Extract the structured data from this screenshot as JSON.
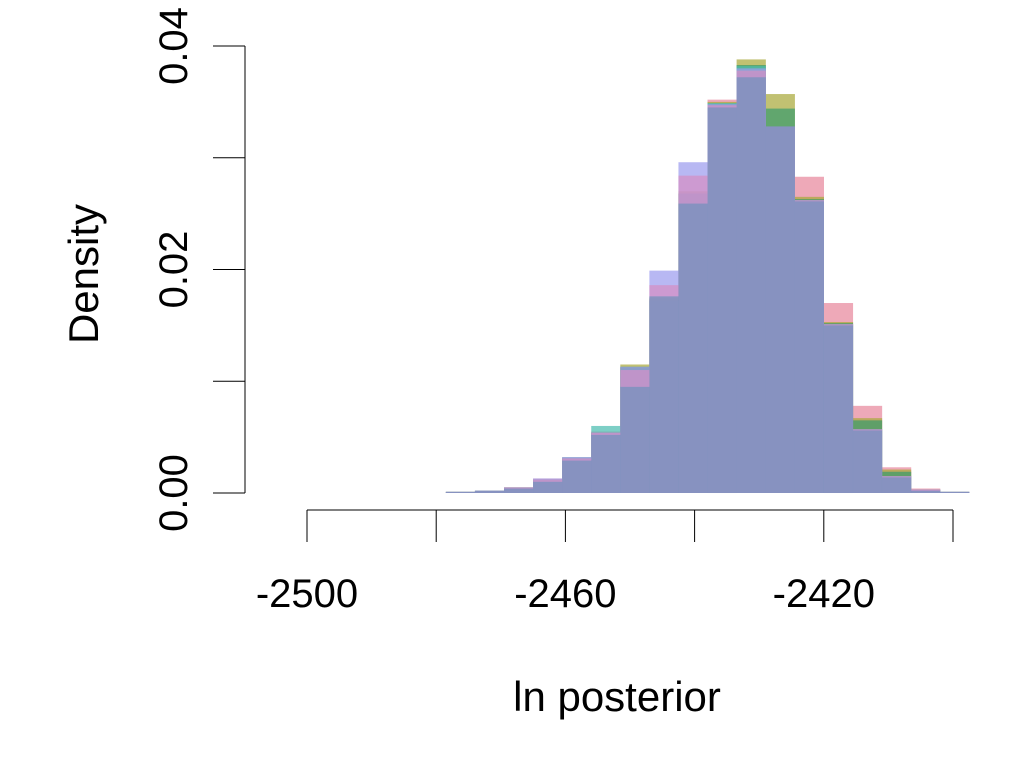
{
  "chart_data": {
    "type": "bar",
    "title": "",
    "xlabel": "ln posterior",
    "ylabel": "Density",
    "xlim": [
      -2500,
      -2400
    ],
    "ylim": [
      0,
      0.04
    ],
    "x_ticks": [
      -2500,
      -2480,
      -2460,
      -2440,
      -2420,
      -2400
    ],
    "x_tick_labels": [
      "-2500",
      "",
      "-2460",
      "",
      "-2420",
      ""
    ],
    "y_ticks": [
      0,
      0.01,
      0.02,
      0.03,
      0.04
    ],
    "y_tick_labels": [
      "0.00",
      "",
      "0.02",
      "",
      "0.04"
    ],
    "grid": false,
    "legend": "none",
    "bin_width": 4.5,
    "bin_starts": [
      -2478.5,
      -2474,
      -2469.5,
      -2465,
      -2460.5,
      -2456,
      -2451.5,
      -2447,
      -2442.5,
      -2438,
      -2433.5,
      -2429,
      -2424.5,
      -2420,
      -2415.5,
      -2411,
      -2406.5,
      -2402
    ],
    "series": [
      {
        "color": "#e8889c",
        "values": [
          0.0001,
          0.0001,
          0.0005,
          0.0013,
          0.0032,
          0.0055,
          0.0112,
          0.0173,
          0.0268,
          0.0352,
          0.0376,
          0.0328,
          0.0283,
          0.017,
          0.0078,
          0.0023,
          0.0004,
          0.0001
        ]
      },
      {
        "color": "#a9a93c",
        "values": [
          0.0001,
          0.0002,
          0.0005,
          0.0012,
          0.0031,
          0.0054,
          0.0115,
          0.0175,
          0.027,
          0.035,
          0.0388,
          0.0357,
          0.0265,
          0.0153,
          0.0067,
          0.0021,
          0.0003,
          0.0001
        ]
      },
      {
        "color": "#3c9b6c",
        "values": [
          0.0001,
          0.0002,
          0.0005,
          0.0012,
          0.0031,
          0.0054,
          0.0113,
          0.0174,
          0.0268,
          0.0348,
          0.0383,
          0.0344,
          0.0263,
          0.0152,
          0.0065,
          0.0019,
          0.0003,
          0.0001
        ]
      },
      {
        "color": "#4bbdb0",
        "values": [
          0.0001,
          0.0002,
          0.0005,
          0.0012,
          0.0032,
          0.006,
          0.011,
          0.0172,
          0.0268,
          0.0349,
          0.0382,
          0.0328,
          0.0262,
          0.0151,
          0.0057,
          0.0015,
          0.0003,
          0.0001
        ]
      },
      {
        "color": "#9c9cee",
        "values": [
          0.0001,
          0.0002,
          0.0005,
          0.0013,
          0.0032,
          0.0054,
          0.0113,
          0.0199,
          0.0296,
          0.0348,
          0.038,
          0.0328,
          0.0262,
          0.0151,
          0.0057,
          0.0015,
          0.0003,
          0.0001
        ]
      },
      {
        "color": "#d58fc4",
        "values": [
          0.0001,
          0.0002,
          0.0005,
          0.0012,
          0.0031,
          0.0054,
          0.011,
          0.0186,
          0.0284,
          0.0347,
          0.0378,
          0.0328,
          0.0262,
          0.0151,
          0.0057,
          0.0015,
          0.0003,
          0.0001
        ]
      },
      {
        "color": "#7292bd",
        "values": [
          0.0001,
          0.0002,
          0.0004,
          0.001,
          0.0029,
          0.0052,
          0.0095,
          0.0176,
          0.0259,
          0.0345,
          0.0372,
          0.0328,
          0.0261,
          0.015,
          0.0056,
          0.0014,
          0.0002,
          0.0001
        ]
      }
    ]
  }
}
